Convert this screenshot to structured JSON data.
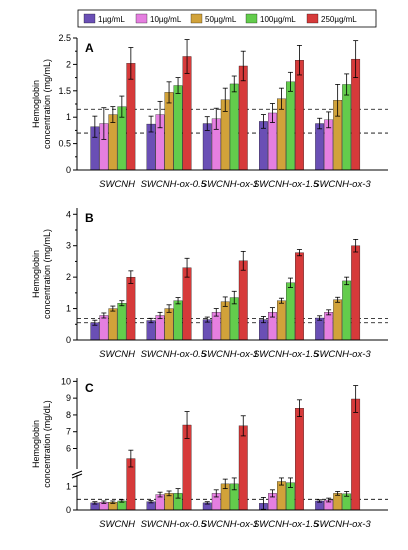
{
  "legend": [
    {
      "label": "1µg/mL",
      "color": "#6a4fb5"
    },
    {
      "label": "10µg/mL",
      "color": "#e57fe0"
    },
    {
      "label": "50µg/mL",
      "color": "#d1a23a"
    },
    {
      "label": "100µg/mL",
      "color": "#63cc4c"
    },
    {
      "label": "250µg/mL",
      "color": "#d63a3a"
    }
  ],
  "chart_data": [
    {
      "type": "bar",
      "panel": "A",
      "ylabel": "Hemoglobin concentration (mg/mL)",
      "ylim": [
        0,
        2.5
      ],
      "yticks": [
        0,
        0.5,
        1,
        1.5,
        2,
        2.5
      ],
      "ytick_labels": [
        "0",
        "0.5",
        "1",
        "1.5",
        "2",
        "2.5"
      ],
      "reference_lines": [
        0.7,
        1.15
      ],
      "categories": [
        "SWCNH",
        "SWCNH-ox-0.5",
        "SWCNH-ox-1",
        "SWCNH-ox-1.5",
        "SWCNH-ox-3"
      ],
      "series": [
        {
          "name": "1µg/mL",
          "values": [
            0.82,
            0.87,
            0.88,
            0.92,
            0.88
          ],
          "errors": [
            0.2,
            0.15,
            0.13,
            0.13,
            0.1
          ]
        },
        {
          "name": "10µg/mL",
          "values": [
            0.88,
            1.05,
            0.97,
            1.08,
            0.95
          ],
          "errors": [
            0.3,
            0.25,
            0.2,
            0.18,
            0.15
          ]
        },
        {
          "name": "50µg/mL",
          "values": [
            1.05,
            1.47,
            1.33,
            1.35,
            1.32
          ],
          "errors": [
            0.15,
            0.2,
            0.22,
            0.2,
            0.3
          ]
        },
        {
          "name": "100µg/mL",
          "values": [
            1.2,
            1.6,
            1.63,
            1.67,
            1.62
          ],
          "errors": [
            0.2,
            0.15,
            0.15,
            0.18,
            0.2
          ]
        },
        {
          "name": "250µg/mL",
          "values": [
            2.02,
            2.15,
            1.97,
            2.08,
            2.1
          ],
          "errors": [
            0.3,
            0.32,
            0.28,
            0.28,
            0.35
          ]
        }
      ]
    },
    {
      "type": "bar",
      "panel": "B",
      "ylabel": "Hemoglobin concentration (mg/mL)",
      "ylim": [
        0,
        4.2
      ],
      "yticks": [
        0,
        1,
        2,
        3,
        4
      ],
      "ytick_labels": [
        "0",
        "1",
        "2",
        "3",
        "4"
      ],
      "reference_lines": [
        0.55,
        0.68
      ],
      "categories": [
        "SWCNH",
        "SWCNH-ox-0.5",
        "SWCNH-ox-1",
        "SWCNH-ox-1.5",
        "SWCNH-ox-3"
      ],
      "series": [
        {
          "name": "1µg/mL",
          "values": [
            0.55,
            0.62,
            0.65,
            0.65,
            0.7
          ],
          "errors": [
            0.08,
            0.07,
            0.08,
            0.1,
            0.07
          ]
        },
        {
          "name": "10µg/mL",
          "values": [
            0.78,
            0.78,
            0.88,
            0.88,
            0.88
          ],
          "errors": [
            0.08,
            0.1,
            0.12,
            0.15,
            0.08
          ]
        },
        {
          "name": "50µg/mL",
          "values": [
            1.0,
            1.0,
            1.22,
            1.25,
            1.28
          ],
          "errors": [
            0.08,
            0.12,
            0.15,
            0.08,
            0.08
          ]
        },
        {
          "name": "100µg/mL",
          "values": [
            1.17,
            1.25,
            1.35,
            1.82,
            1.88
          ],
          "errors": [
            0.08,
            0.1,
            0.2,
            0.15,
            0.12
          ]
        },
        {
          "name": "250µg/mL",
          "values": [
            2.0,
            2.3,
            2.52,
            2.78,
            3.0
          ],
          "errors": [
            0.2,
            0.3,
            0.3,
            0.1,
            0.2
          ]
        }
      ]
    },
    {
      "type": "bar",
      "panel": "C",
      "ylabel": "Hemoglobin concentration (mg/dL)",
      "y_axis_break": true,
      "ylim": [
        0,
        10
      ],
      "yticks": [
        0,
        1,
        6,
        7,
        8,
        9,
        10
      ],
      "ytick_labels": [
        "0",
        "1",
        "6",
        "7",
        "8",
        "9",
        "10"
      ],
      "reference_lines": [
        0.45
      ],
      "categories": [
        "SWCNH",
        "SWCNH-ox-0.5",
        "SWCNH-ox-1",
        "SWCNH-ox-1.5",
        "SWCNH-ox-3"
      ],
      "series": [
        {
          "name": "1µg/mL",
          "values": [
            0.3,
            0.35,
            0.3,
            0.28,
            0.38
          ],
          "errors": [
            0.05,
            0.05,
            0.05,
            0.25,
            0.05
          ]
        },
        {
          "name": "10µg/mL",
          "values": [
            0.33,
            0.65,
            0.7,
            0.7,
            0.42
          ],
          "errors": [
            0.05,
            0.1,
            0.15,
            0.15,
            0.08
          ]
        },
        {
          "name": "50µg/mL",
          "values": [
            0.33,
            0.7,
            1.1,
            1.2,
            0.7
          ],
          "errors": [
            0.05,
            0.1,
            0.2,
            0.15,
            0.08
          ]
        },
        {
          "name": "100µg/mL",
          "values": [
            0.38,
            0.7,
            1.1,
            1.15,
            0.68
          ],
          "errors": [
            0.05,
            0.2,
            0.25,
            0.2,
            0.1
          ]
        },
        {
          "name": "250µg/mL",
          "values": [
            5.4,
            7.4,
            7.35,
            8.4,
            8.95
          ],
          "errors": [
            0.5,
            0.8,
            0.6,
            0.5,
            0.8
          ]
        }
      ]
    }
  ]
}
